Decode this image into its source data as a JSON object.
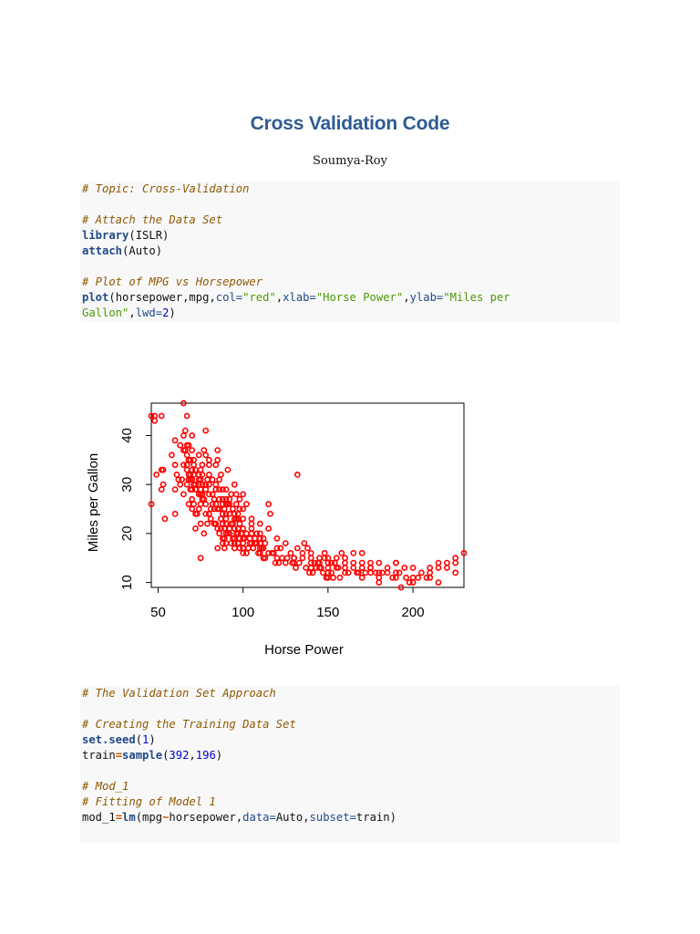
{
  "document": {
    "title": "Cross Validation Code",
    "author": "Soumya-Roy"
  },
  "code_block_1": {
    "l1": "# Topic: Cross-Validation",
    "l2": "# Attach the Data Set",
    "l3_fn": "library",
    "l3_rest": "(ISLR)",
    "l4_fn": "attach",
    "l4_rest": "(Auto)",
    "l5": "# Plot of MPG vs Horsepower",
    "l6_fn": "plot",
    "l6_a": "(horsepower,mpg,",
    "l6_col": "col=",
    "l6_red": "\"red\"",
    "l6_c1": ",",
    "l6_xlab": "xlab=",
    "l6_xval": "\"Horse Power\"",
    "l6_c2": ",",
    "l6_ylab": "ylab=",
    "l6_yval1": "\"Miles per",
    "l7_yval2": "Gallon\"",
    "l7_c": ",",
    "l7_lwd": "lwd=",
    "l7_num": "2",
    "l7_end": ")"
  },
  "code_block_2": {
    "l1": "# The Validation Set Approach",
    "l2": "# Creating the Training Data Set",
    "l3_fn": "set.seed",
    "l3_p1": "(",
    "l3_num": "1",
    "l3_p2": ")",
    "l4_a": "train",
    "l4_eq": "=",
    "l4_fn": "sample",
    "l4_p1": "(",
    "l4_n1": "392",
    "l4_c": ",",
    "l4_n2": "196",
    "l4_p2": ")",
    "l5": "# Mod_1",
    "l6": "# Fitting of Model 1",
    "l7_a": "mod_1",
    "l7_eq": "=",
    "l7_fn": "lm",
    "l7_b": "(mpg",
    "l7_tilde": "~",
    "l7_c": "horsepower,",
    "l7_data": "data=",
    "l7_d": "Auto,",
    "l7_subset": "subset=",
    "l7_e": "train)"
  },
  "chart_data": {
    "type": "scatter",
    "xlabel": "Horse Power",
    "ylabel": "Miles per Gallon",
    "xticks": [
      50,
      100,
      150,
      200
    ],
    "yticks": [
      10,
      20,
      30,
      40
    ],
    "xlim": [
      46,
      230
    ],
    "ylim": [
      9,
      46.6
    ],
    "marker_color": "#ff0000",
    "points": [
      [
        46,
        26
      ],
      [
        46,
        44
      ],
      [
        48,
        43
      ],
      [
        48,
        44
      ],
      [
        52,
        44
      ],
      [
        49,
        32
      ],
      [
        52,
        33
      ],
      [
        52,
        29
      ],
      [
        53,
        30
      ],
      [
        53,
        33
      ],
      [
        54,
        23
      ],
      [
        58,
        36
      ],
      [
        60,
        29
      ],
      [
        60,
        24
      ],
      [
        61,
        32
      ],
      [
        63,
        38
      ],
      [
        64,
        31
      ],
      [
        65,
        34
      ],
      [
        65,
        46.6
      ],
      [
        65,
        37
      ],
      [
        65,
        40
      ],
      [
        66,
        37
      ],
      [
        67,
        30
      ],
      [
        67,
        34
      ],
      [
        67,
        33
      ],
      [
        67,
        44
      ],
      [
        68,
        26
      ],
      [
        68,
        31
      ],
      [
        68,
        32
      ],
      [
        68,
        38
      ],
      [
        69,
        29
      ],
      [
        69,
        31
      ],
      [
        69,
        32
      ],
      [
        70,
        31
      ],
      [
        70,
        27
      ],
      [
        70,
        37
      ],
      [
        70,
        25
      ],
      [
        70,
        29
      ],
      [
        71,
        32
      ],
      [
        71,
        34
      ],
      [
        71,
        30
      ],
      [
        71,
        35
      ],
      [
        72,
        21
      ],
      [
        72,
        24
      ],
      [
        72,
        29
      ],
      [
        74,
        30
      ],
      [
        74,
        31
      ],
      [
        74,
        32
      ],
      [
        74,
        25
      ],
      [
        74,
        36
      ],
      [
        75,
        29
      ],
      [
        75,
        26
      ],
      [
        75,
        28
      ],
      [
        75,
        31
      ],
      [
        75,
        22
      ],
      [
        75,
        15
      ],
      [
        76,
        30
      ],
      [
        76,
        32
      ],
      [
        76,
        28
      ],
      [
        76,
        27
      ],
      [
        77,
        20
      ],
      [
        78,
        24
      ],
      [
        78,
        26
      ],
      [
        78,
        29
      ],
      [
        78,
        41
      ],
      [
        79,
        22
      ],
      [
        80,
        34
      ],
      [
        80,
        28
      ],
      [
        80,
        24
      ],
      [
        81,
        25
      ],
      [
        82,
        26
      ],
      [
        83,
        22
      ],
      [
        83,
        27
      ],
      [
        84,
        22
      ],
      [
        84,
        30
      ],
      [
        84,
        34
      ],
      [
        85,
        37
      ],
      [
        85,
        17
      ],
      [
        85,
        25
      ],
      [
        86,
        29
      ],
      [
        86,
        27
      ],
      [
        87,
        21
      ],
      [
        87,
        32
      ],
      [
        88,
        22
      ],
      [
        88,
        27
      ],
      [
        88,
        19
      ],
      [
        88,
        18
      ],
      [
        89,
        21
      ],
      [
        89,
        25
      ],
      [
        90,
        24
      ],
      [
        90,
        27
      ],
      [
        90,
        20
      ],
      [
        90,
        18
      ],
      [
        90,
        29
      ],
      [
        91,
        33
      ],
      [
        91,
        26
      ],
      [
        92,
        26
      ],
      [
        92,
        20
      ],
      [
        93,
        22
      ],
      [
        94,
        19
      ],
      [
        95,
        19
      ],
      [
        95,
        23
      ],
      [
        95,
        21
      ],
      [
        95,
        18
      ],
      [
        96,
        23
      ],
      [
        96,
        28
      ],
      [
        97,
        20
      ],
      [
        97,
        24
      ],
      [
        97,
        18
      ],
      [
        98,
        22
      ],
      [
        98,
        25
      ],
      [
        99,
        20
      ],
      [
        100,
        17
      ],
      [
        100,
        19
      ],
      [
        100,
        21
      ],
      [
        100,
        18
      ],
      [
        102,
        16
      ],
      [
        102,
        26
      ],
      [
        105,
        20
      ],
      [
        105,
        22
      ],
      [
        107,
        19
      ],
      [
        108,
        20
      ],
      [
        110,
        17
      ],
      [
        110,
        20
      ],
      [
        110,
        18
      ],
      [
        112,
        19
      ],
      [
        113,
        18
      ],
      [
        115,
        21
      ],
      [
        116,
        24
      ],
      [
        120,
        17
      ],
      [
        120,
        19
      ],
      [
        125,
        18
      ],
      [
        130,
        15
      ],
      [
        130,
        14
      ],
      [
        132,
        32
      ],
      [
        135,
        15
      ],
      [
        140,
        14
      ],
      [
        140,
        15
      ],
      [
        140,
        16
      ],
      [
        145,
        15
      ],
      [
        145,
        14
      ],
      [
        148,
        16
      ],
      [
        150,
        14
      ],
      [
        150,
        13
      ],
      [
        150,
        12
      ],
      [
        152,
        14
      ],
      [
        155,
        13
      ],
      [
        158,
        16
      ],
      [
        160,
        14
      ],
      [
        165,
        14
      ],
      [
        165,
        13
      ],
      [
        167,
        12
      ],
      [
        170,
        16
      ],
      [
        175,
        13
      ],
      [
        175,
        14
      ],
      [
        180,
        12
      ],
      [
        190,
        12
      ],
      [
        193,
        9
      ],
      [
        198,
        10
      ],
      [
        200,
        11
      ],
      [
        208,
        11
      ],
      [
        210,
        13
      ],
      [
        215,
        14
      ],
      [
        220,
        14
      ],
      [
        225,
        15
      ],
      [
        230,
        16
      ],
      [
        95,
        30
      ],
      [
        100,
        28
      ],
      [
        85,
        35
      ],
      [
        78,
        36
      ],
      [
        80,
        35
      ],
      [
        92,
        24
      ],
      [
        89,
        19
      ],
      [
        97,
        18
      ],
      [
        88,
        27
      ],
      [
        110,
        22
      ],
      [
        115,
        26
      ],
      [
        105,
        23
      ],
      [
        100,
        25
      ],
      [
        90,
        22
      ],
      [
        95,
        24
      ],
      [
        83,
        25
      ],
      [
        86,
        20
      ],
      [
        88,
        24
      ],
      [
        93,
        28
      ],
      [
        97,
        23
      ],
      [
        98,
        17
      ],
      [
        100,
        16
      ],
      [
        104,
        18
      ],
      [
        105,
        21
      ],
      [
        110,
        16
      ],
      [
        112,
        15
      ],
      [
        115,
        16
      ],
      [
        120,
        15
      ],
      [
        125,
        14
      ],
      [
        130,
        15
      ],
      [
        135,
        16
      ],
      [
        140,
        13
      ],
      [
        145,
        13
      ],
      [
        150,
        15
      ],
      [
        155,
        15
      ],
      [
        160,
        15
      ],
      [
        165,
        16
      ],
      [
        170,
        14
      ],
      [
        175,
        13
      ],
      [
        180,
        14
      ],
      [
        185,
        13
      ],
      [
        190,
        14
      ],
      [
        195,
        13
      ],
      [
        200,
        13
      ],
      [
        205,
        12
      ],
      [
        210,
        12
      ],
      [
        215,
        13
      ],
      [
        220,
        13
      ],
      [
        225,
        14
      ],
      [
        60,
        34
      ],
      [
        63,
        30
      ],
      [
        65,
        28
      ],
      [
        67,
        36
      ],
      [
        68,
        35
      ],
      [
        70,
        33
      ],
      [
        72,
        30
      ],
      [
        74,
        28
      ],
      [
        76,
        34
      ],
      [
        78,
        30
      ],
      [
        80,
        32
      ],
      [
        82,
        28
      ],
      [
        84,
        26
      ],
      [
        86,
        25
      ],
      [
        88,
        26
      ],
      [
        90,
        26
      ],
      [
        92,
        27
      ],
      [
        94,
        25
      ],
      [
        96,
        26
      ],
      [
        98,
        27
      ],
      [
        67,
        38
      ],
      [
        70,
        40
      ],
      [
        72,
        33
      ],
      [
        75,
        33
      ],
      [
        77,
        27
      ],
      [
        80,
        30
      ],
      [
        82,
        31
      ],
      [
        84,
        29
      ],
      [
        86,
        31
      ],
      [
        88,
        29
      ],
      [
        90,
        23
      ],
      [
        92,
        21
      ],
      [
        94,
        22
      ],
      [
        96,
        20
      ],
      [
        98,
        19
      ],
      [
        100,
        23
      ],
      [
        102,
        20
      ],
      [
        104,
        19
      ],
      [
        106,
        17
      ],
      [
        108,
        18
      ],
      [
        110,
        19
      ],
      [
        112,
        17
      ],
      [
        118,
        16
      ],
      [
        122,
        17
      ],
      [
        128,
        16
      ],
      [
        132,
        17
      ],
      [
        136,
        18
      ],
      [
        138,
        17
      ],
      [
        142,
        14
      ],
      [
        144,
        14
      ],
      [
        146,
        13
      ],
      [
        148,
        15
      ],
      [
        152,
        12
      ],
      [
        154,
        14
      ],
      [
        156,
        13
      ],
      [
        160,
        13
      ],
      [
        170,
        13
      ],
      [
        175,
        12
      ],
      [
        180,
        11
      ],
      [
        185,
        12
      ],
      [
        190,
        14
      ],
      [
        150,
        11
      ],
      [
        160,
        12
      ],
      [
        170,
        11
      ],
      [
        180,
        10
      ],
      [
        190,
        11
      ],
      [
        200,
        10
      ],
      [
        210,
        11
      ],
      [
        215,
        10
      ],
      [
        225,
        12
      ],
      [
        60,
        39
      ],
      [
        62,
        31
      ],
      [
        66,
        41
      ],
      [
        69,
        35
      ],
      [
        71,
        26
      ],
      [
        73,
        24
      ],
      [
        77,
        37
      ],
      [
        79,
        31
      ],
      [
        81,
        23
      ],
      [
        83,
        22
      ],
      [
        85,
        21
      ],
      [
        87,
        23
      ],
      [
        89,
        17
      ],
      [
        91,
        20
      ],
      [
        93,
        18
      ],
      [
        95,
        17
      ],
      [
        97,
        21
      ],
      [
        99,
        20
      ],
      [
        101,
        19
      ],
      [
        103,
        17
      ],
      [
        105,
        18
      ],
      [
        107,
        18
      ],
      [
        109,
        16
      ],
      [
        111,
        17
      ],
      [
        113,
        15
      ],
      [
        117,
        16
      ],
      [
        119,
        14
      ],
      [
        121,
        14
      ],
      [
        123,
        15
      ],
      [
        126,
        15
      ],
      [
        129,
        14
      ],
      [
        131,
        13
      ],
      [
        133,
        14
      ],
      [
        137,
        13
      ],
      [
        139,
        12
      ],
      [
        141,
        12
      ],
      [
        143,
        13
      ],
      [
        147,
        12
      ],
      [
        149,
        11
      ],
      [
        153,
        11
      ],
      [
        157,
        11
      ],
      [
        162,
        12
      ],
      [
        168,
        12
      ],
      [
        172,
        12
      ],
      [
        178,
        12
      ],
      [
        182,
        12
      ],
      [
        188,
        11
      ],
      [
        192,
        12
      ],
      [
        196,
        11
      ],
      [
        203,
        11
      ]
    ]
  }
}
